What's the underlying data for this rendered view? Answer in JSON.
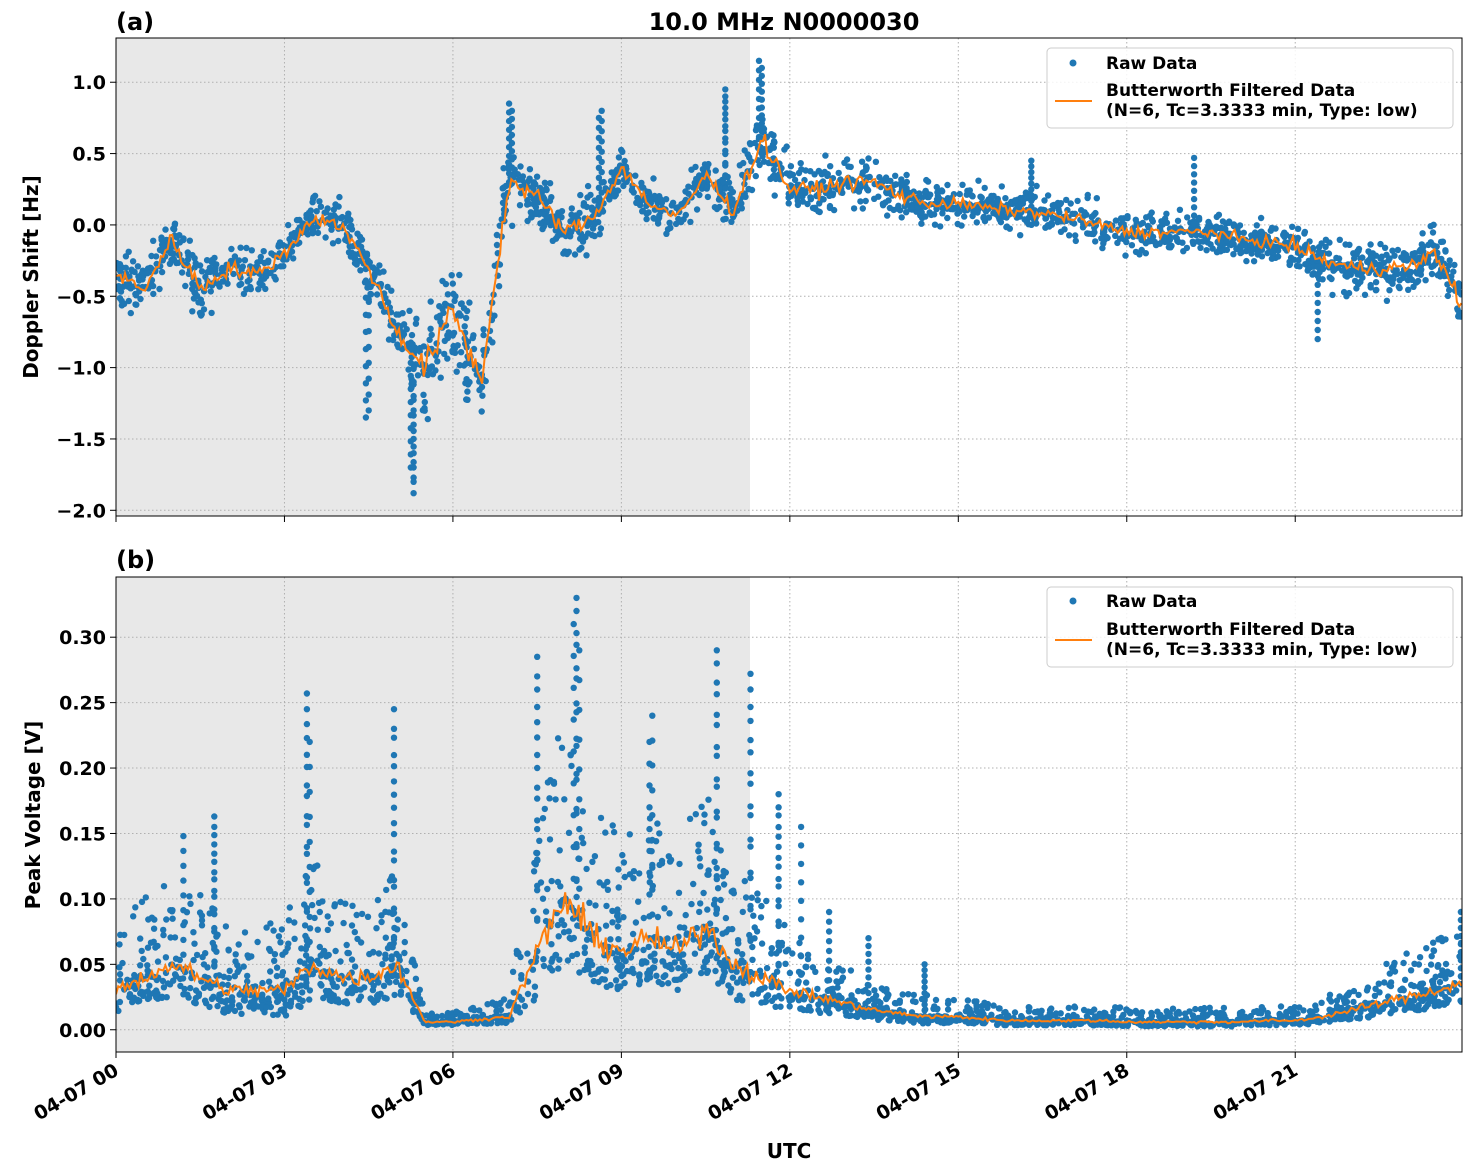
{
  "figure": {
    "title": "10.0 MHz N0000030",
    "xlabel": "UTC"
  },
  "colors": {
    "raw": "#1f77b4",
    "filtered": "#ff7f0e",
    "shade": "#e8e8e8",
    "grid": "#b0b0b0"
  },
  "chart_data": [
    {
      "type": "scatter",
      "panel_label": "(a)",
      "ylabel": "Doppler Shift [Hz]",
      "ylim": [
        -2.04,
        1.31
      ],
      "xlim_hours": [
        0,
        23.97
      ],
      "yticks": [
        1.0,
        0.5,
        0.0,
        -0.5,
        -1.0,
        -1.5,
        -2.0
      ],
      "ytick_labels": [
        "1.0",
        "0.5",
        "0.0",
        "−0.5",
        "−1.0",
        "−1.5",
        "−2.0"
      ],
      "grid": true,
      "shaded_interval_hours": [
        0,
        11.29
      ],
      "legend": {
        "placement": "top-right",
        "entries": [
          "Raw Data",
          "Butterworth Filtered Data",
          "(N=6, Tc=3.3333 min, Type: low)"
        ]
      },
      "series": [
        {
          "name": "Butterworth Filtered Data",
          "kind": "line",
          "x_hours": [
            0,
            0.5,
            1,
            1.5,
            2,
            2.5,
            3,
            3.5,
            4,
            4.5,
            5,
            5.5,
            6,
            6.5,
            7,
            7.5,
            8,
            8.5,
            9,
            9.5,
            10,
            10.5,
            11,
            11.5,
            12,
            12.5,
            13,
            13.5,
            14,
            14.5,
            15,
            15.5,
            16,
            16.5,
            17,
            17.5,
            18,
            18.5,
            19,
            19.5,
            20,
            20.5,
            21,
            21.5,
            22,
            22.5,
            23,
            23.5,
            23.97
          ],
          "y": [
            -0.35,
            -0.45,
            -0.1,
            -0.45,
            -0.3,
            -0.35,
            -0.2,
            0.05,
            0.0,
            -0.3,
            -0.75,
            -1.0,
            -0.6,
            -1.1,
            0.3,
            0.2,
            -0.05,
            0.05,
            0.4,
            0.15,
            0.05,
            0.35,
            0.1,
            0.6,
            0.25,
            0.25,
            0.3,
            0.3,
            0.2,
            0.15,
            0.15,
            0.12,
            0.1,
            0.08,
            0.05,
            0.0,
            -0.05,
            -0.05,
            -0.05,
            -0.05,
            -0.1,
            -0.12,
            -0.15,
            -0.25,
            -0.3,
            -0.3,
            -0.3,
            -0.2,
            -0.55
          ]
        },
        {
          "name": "Raw Data",
          "kind": "scatter",
          "spread": [
            0.3,
            0.3,
            0.3,
            0.4,
            0.3,
            0.25,
            0.25,
            0.25,
            0.25,
            0.3,
            0.35,
            0.5,
            0.55,
            0.5,
            0.4,
            0.3,
            0.3,
            0.3,
            0.25,
            0.25,
            0.25,
            0.25,
            0.3,
            0.35,
            0.3,
            0.3,
            0.3,
            0.3,
            0.25,
            0.25,
            0.22,
            0.22,
            0.22,
            0.22,
            0.22,
            0.22,
            0.22,
            0.22,
            0.22,
            0.22,
            0.22,
            0.22,
            0.25,
            0.3,
            0.3,
            0.3,
            0.3,
            0.3,
            0.35
          ],
          "outliers_x_hours": [
            5.3,
            5.3,
            5.25,
            10.85,
            10.85,
            11.45,
            11.5,
            7.0,
            7.05,
            8.65,
            8.6,
            4.45,
            4.5,
            16.3,
            19.2,
            21.4
          ],
          "outliers_y": [
            -1.88,
            -1.8,
            -1.7,
            0.95,
            0.9,
            1.15,
            1.1,
            0.85,
            0.8,
            0.8,
            0.75,
            -1.35,
            -1.3,
            0.45,
            0.47,
            -0.8
          ]
        }
      ]
    },
    {
      "type": "scatter",
      "panel_label": "(b)",
      "ylabel": "Peak Voltage [V]",
      "ylim": [
        -0.017,
        0.346
      ],
      "xlim_hours": [
        0,
        23.97
      ],
      "yticks": [
        0.0,
        0.05,
        0.1,
        0.15,
        0.2,
        0.25,
        0.3
      ],
      "ytick_labels": [
        "0.00",
        "0.05",
        "0.10",
        "0.15",
        "0.20",
        "0.25",
        "0.30"
      ],
      "xtick_hours": [
        0,
        3,
        6,
        9,
        12,
        15,
        18,
        21
      ],
      "xtick_labels": [
        "04-07 00",
        "04-07 03",
        "04-07 06",
        "04-07 09",
        "04-07 12",
        "04-07 15",
        "04-07 18",
        "04-07 21"
      ],
      "grid": true,
      "shaded_interval_hours": [
        0,
        11.29
      ],
      "legend": {
        "placement": "top-right",
        "entries": [
          "Raw Data",
          "Butterworth Filtered Data",
          "(N=6, Tc=3.3333 min, Type: low)"
        ]
      },
      "series": [
        {
          "name": "Butterworth Filtered Data",
          "kind": "line",
          "x_hours": [
            0,
            0.5,
            1,
            1.5,
            2,
            2.5,
            3,
            3.5,
            4,
            4.5,
            5,
            5.5,
            6,
            6.5,
            7,
            7.5,
            8,
            8.5,
            9,
            9.5,
            10,
            10.5,
            11,
            11.5,
            12,
            12.5,
            13,
            13.5,
            14,
            14.5,
            15,
            15.5,
            16,
            16.5,
            17,
            17.5,
            18,
            18.5,
            19,
            19.5,
            20,
            20.5,
            21,
            21.5,
            22,
            22.5,
            23,
            23.5,
            23.97
          ],
          "y": [
            0.03,
            0.04,
            0.05,
            0.04,
            0.03,
            0.03,
            0.03,
            0.05,
            0.04,
            0.04,
            0.05,
            0.006,
            0.006,
            0.008,
            0.01,
            0.06,
            0.1,
            0.07,
            0.06,
            0.07,
            0.06,
            0.08,
            0.05,
            0.04,
            0.03,
            0.025,
            0.02,
            0.015,
            0.012,
            0.01,
            0.01,
            0.008,
            0.007,
            0.007,
            0.007,
            0.007,
            0.006,
            0.006,
            0.006,
            0.006,
            0.006,
            0.007,
            0.007,
            0.01,
            0.015,
            0.02,
            0.025,
            0.03,
            0.035
          ]
        },
        {
          "name": "Raw Data",
          "kind": "scatter",
          "spread": [
            0.03,
            0.035,
            0.04,
            0.035,
            0.03,
            0.03,
            0.035,
            0.045,
            0.035,
            0.035,
            0.04,
            0.004,
            0.004,
            0.006,
            0.008,
            0.06,
            0.08,
            0.06,
            0.05,
            0.055,
            0.05,
            0.06,
            0.045,
            0.035,
            0.025,
            0.02,
            0.016,
            0.012,
            0.01,
            0.009,
            0.008,
            0.007,
            0.006,
            0.006,
            0.006,
            0.006,
            0.006,
            0.006,
            0.006,
            0.006,
            0.006,
            0.006,
            0.006,
            0.008,
            0.012,
            0.016,
            0.02,
            0.022,
            0.025
          ],
          "outliers_x_hours": [
            1.2,
            1.75,
            1.75,
            3.4,
            3.4,
            3.45,
            4.95,
            4.95,
            7.5,
            7.5,
            8.2,
            8.2,
            8.15,
            8.25,
            9.55,
            9.5,
            10.7,
            10.7,
            11.3,
            11.3,
            11.8,
            11.8,
            12.2,
            12.7,
            13.4,
            14.4,
            23.95
          ],
          "outliers_y": [
            0.148,
            0.163,
            0.155,
            0.257,
            0.245,
            0.22,
            0.245,
            0.23,
            0.285,
            0.27,
            0.33,
            0.32,
            0.31,
            0.29,
            0.24,
            0.22,
            0.29,
            0.28,
            0.272,
            0.26,
            0.18,
            0.17,
            0.155,
            0.09,
            0.07,
            0.05,
            0.09
          ]
        }
      ]
    }
  ]
}
